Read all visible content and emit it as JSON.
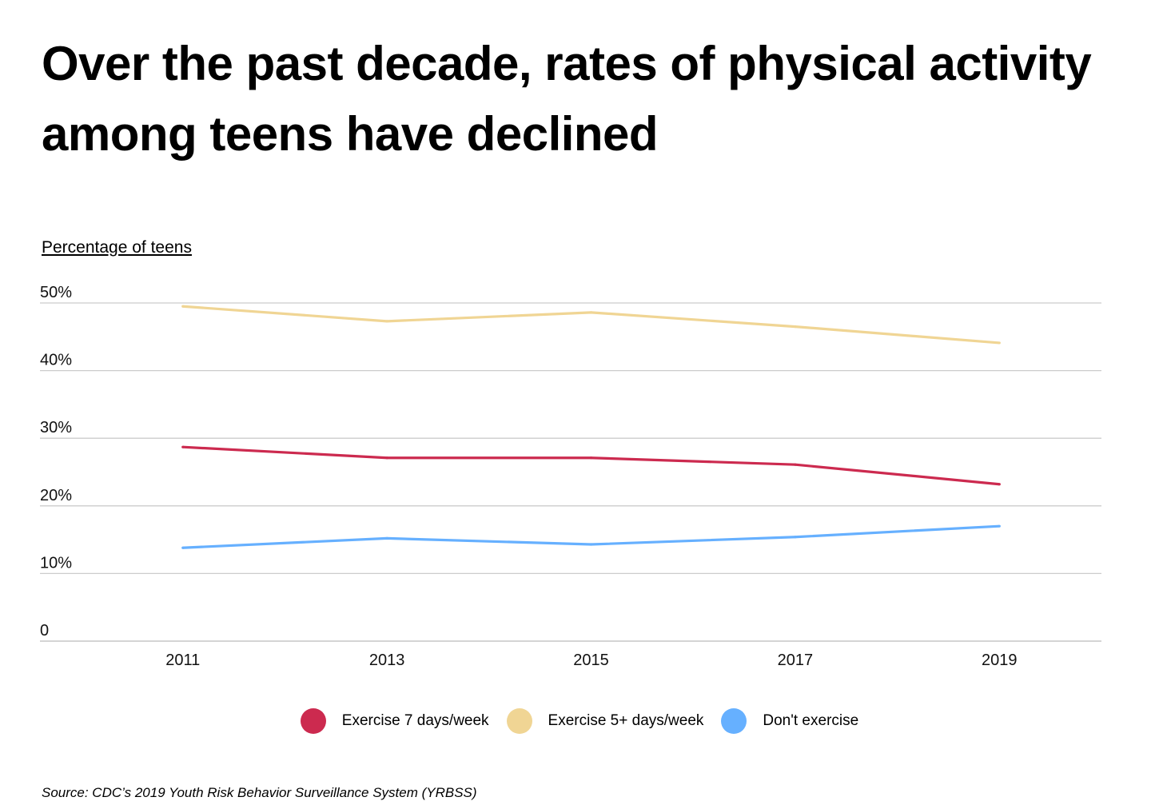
{
  "title": "Over the past decade, rates of physical activity among teens have declined",
  "source": "Source:  CDC’s 2019 Youth Risk Behavior Surveillance System (YRBSS)",
  "chart_data": {
    "type": "line",
    "title": "Over the past decade, rates of physical activity among teens have declined",
    "ylabel": "Percentage of teens",
    "xlabel": "",
    "x": [
      2011,
      2013,
      2015,
      2017,
      2019
    ],
    "x_tick_labels": [
      "2011",
      "2013",
      "2015",
      "2017",
      "2019"
    ],
    "y_tick_labels": [
      "0",
      "10%",
      "20%",
      "30%",
      "40%",
      "50%"
    ],
    "y_ticks": [
      0,
      10,
      20,
      30,
      40,
      50
    ],
    "ylim": [
      0,
      50
    ],
    "xlim": [
      2009.6,
      2020
    ],
    "grid": "horizontal",
    "legend_position": "bottom",
    "series": [
      {
        "name": "Exercise 7 days/week",
        "color": "#cc2a4f",
        "values": [
          28.7,
          27.1,
          27.1,
          26.1,
          23.2
        ]
      },
      {
        "name": "Exercise 5+ days/week",
        "color": "#f0d594",
        "values": [
          49.5,
          47.3,
          48.6,
          46.5,
          44.1
        ]
      },
      {
        "name": "Don't exercise",
        "color": "#66b0ff",
        "values": [
          13.8,
          15.2,
          14.3,
          15.4,
          17.0
        ]
      }
    ]
  }
}
